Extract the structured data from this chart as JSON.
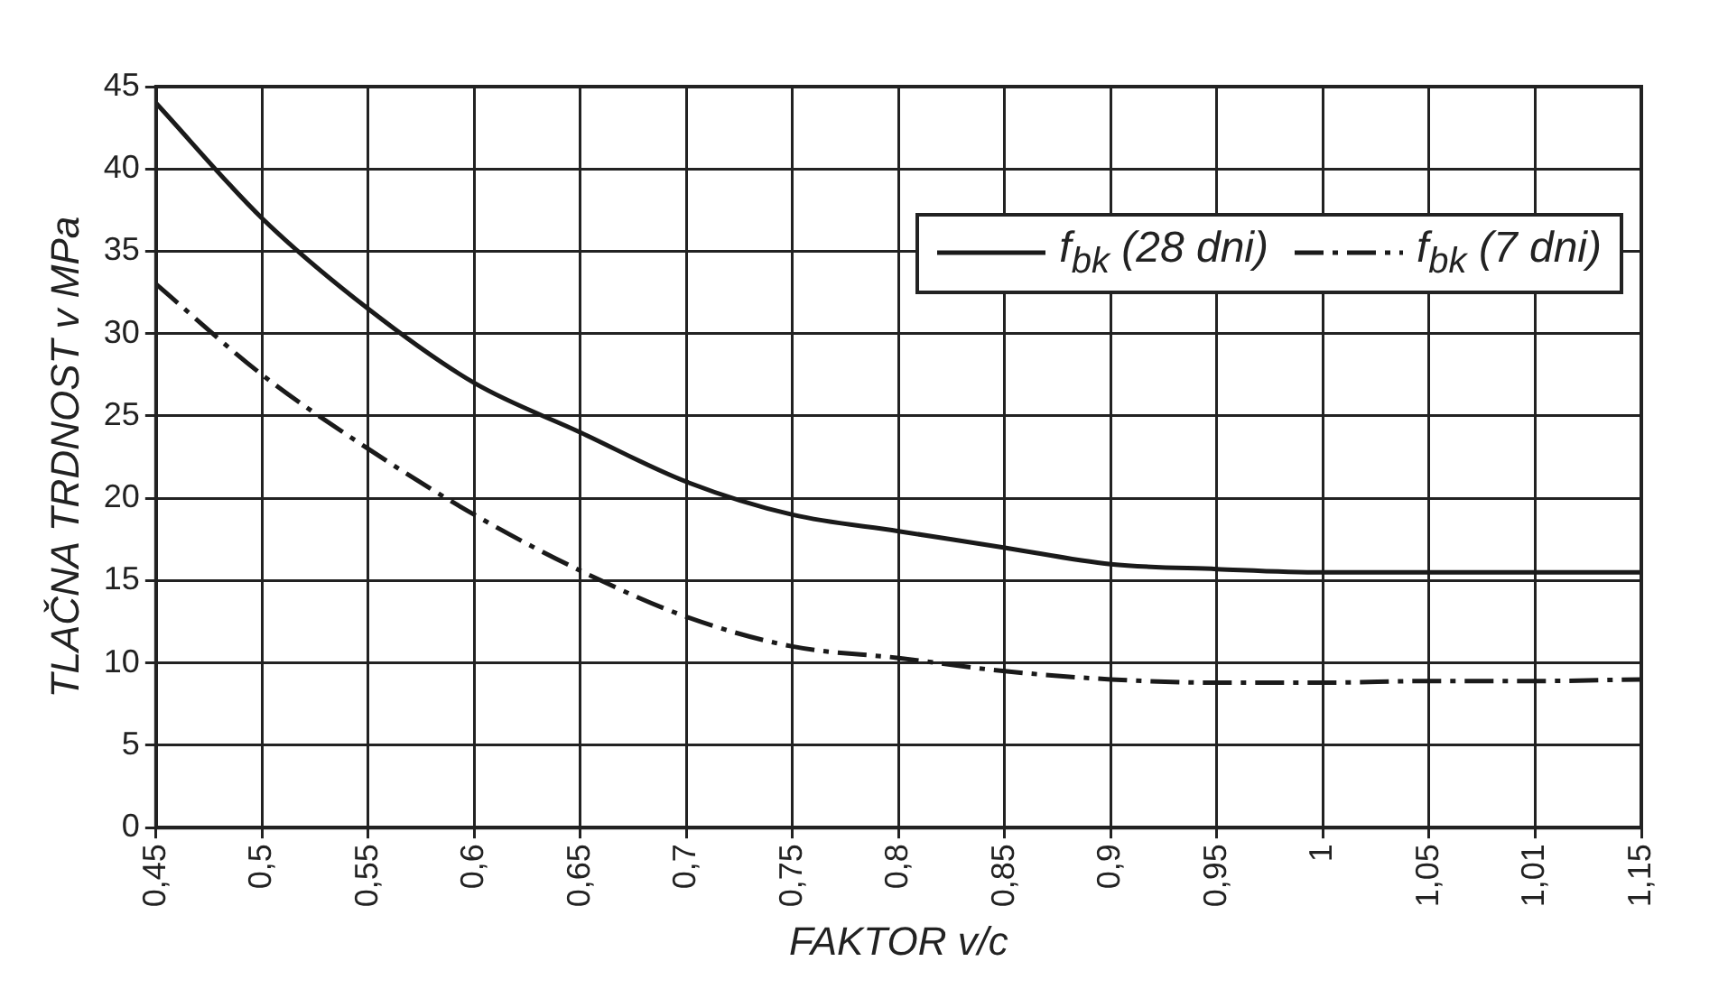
{
  "chart_data": {
    "type": "line",
    "xlabel": "FAKTOR v/c",
    "ylabel": "TLAČNA TRDNOST v MPa",
    "categories": [
      "0,45",
      "0,5",
      "0,55",
      "0,6",
      "0,65",
      "0,7",
      "0,75",
      "0,8",
      "0,85",
      "0,9",
      "0,95",
      "1",
      "1,05",
      "1,01",
      "1,15"
    ],
    "series": [
      {
        "name": "f$_{bk}$ (28 dni)",
        "color": "#1a1a1a",
        "line_style": "solid",
        "values": [
          44,
          37,
          31.5,
          27,
          24,
          21,
          19,
          18,
          17,
          16,
          15.7,
          15.5,
          15.5,
          15.5,
          15.5
        ]
      },
      {
        "name": "f$_{bk}$ (7 dni)",
        "color": "#1a1a1a",
        "line_style": "dashed",
        "values": [
          33,
          27.5,
          23,
          19,
          15.6,
          12.8,
          11,
          10.3,
          9.5,
          9,
          8.8,
          8.8,
          8.9,
          8.9,
          9
        ]
      }
    ],
    "ylim": [
      0,
      45
    ],
    "yticks": [
      0,
      5,
      10,
      15,
      20,
      25,
      30,
      35,
      40,
      45
    ],
    "grid": true,
    "legend": "top right",
    "marker": "none"
  }
}
